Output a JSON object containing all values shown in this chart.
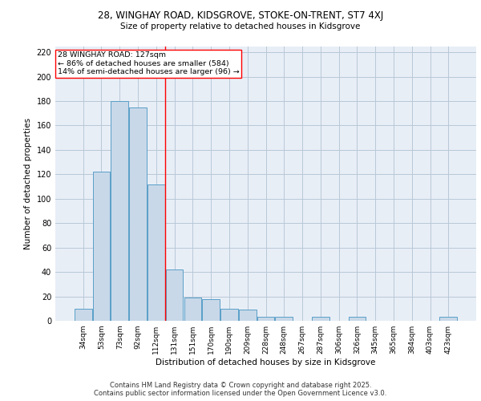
{
  "title_line1": "28, WINGHAY ROAD, KIDSGROVE, STOKE-ON-TRENT, ST7 4XJ",
  "title_line2": "Size of property relative to detached houses in Kidsgrove",
  "xlabel": "Distribution of detached houses by size in Kidsgrove",
  "ylabel": "Number of detached properties",
  "categories": [
    "34sqm",
    "53sqm",
    "73sqm",
    "92sqm",
    "112sqm",
    "131sqm",
    "151sqm",
    "170sqm",
    "190sqm",
    "209sqm",
    "228sqm",
    "248sqm",
    "267sqm",
    "287sqm",
    "306sqm",
    "326sqm",
    "345sqm",
    "365sqm",
    "384sqm",
    "403sqm",
    "423sqm"
  ],
  "values": [
    10,
    122,
    180,
    175,
    112,
    42,
    19,
    18,
    10,
    9,
    3,
    3,
    0,
    3,
    0,
    3,
    0,
    0,
    0,
    0,
    3
  ],
  "bar_color": "#c8d8e8",
  "bar_edge_color": "#5a9fc8",
  "grid_color": "#b8c8d8",
  "background_color": "#e8eef6",
  "annotation_text": "28 WINGHAY ROAD: 127sqm\n← 86% of detached houses are smaller (584)\n14% of semi-detached houses are larger (96) →",
  "annotation_box_color": "white",
  "annotation_box_edge": "red",
  "vline_x_index": 4.5,
  "vline_color": "red",
  "ylim": [
    0,
    225
  ],
  "yticks": [
    0,
    20,
    40,
    60,
    80,
    100,
    120,
    140,
    160,
    180,
    200,
    220
  ],
  "footer_line1": "Contains HM Land Registry data © Crown copyright and database right 2025.",
  "footer_line2": "Contains public sector information licensed under the Open Government Licence v3.0."
}
